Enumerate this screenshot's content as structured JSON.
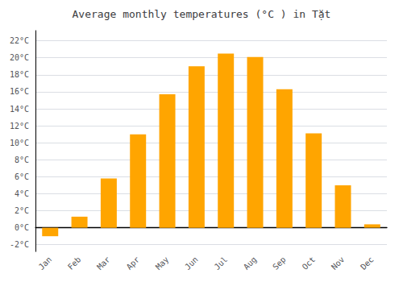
{
  "chart_data": {
    "type": "bar",
    "title": "Average monthly temperatures (°C ) in Tặt",
    "categories": [
      "Jan",
      "Feb",
      "Mar",
      "Apr",
      "May",
      "Jun",
      "Jul",
      "Aug",
      "Sep",
      "Oct",
      "Nov",
      "Dec"
    ],
    "values": [
      -1.0,
      1.3,
      5.8,
      11.0,
      15.7,
      19.0,
      20.5,
      20.1,
      16.3,
      11.1,
      5.0,
      0.4
    ],
    "color": "#FFA500",
    "ylim": [
      -2.8,
      23.2
    ],
    "yticks": [
      {
        "value": -2,
        "label": "-2°C"
      },
      {
        "value": 0,
        "label": "0°C"
      },
      {
        "value": 2,
        "label": "2°C"
      },
      {
        "value": 4,
        "label": "4°C"
      },
      {
        "value": 6,
        "label": "6°C"
      },
      {
        "value": 8,
        "label": "8°C"
      },
      {
        "value": 10,
        "label": "10°C"
      },
      {
        "value": 12,
        "label": "12°C"
      },
      {
        "value": 14,
        "label": "14°C"
      },
      {
        "value": 16,
        "label": "16°C"
      },
      {
        "value": 18,
        "label": "18°C"
      },
      {
        "value": 20,
        "label": "20°C"
      },
      {
        "value": 22,
        "label": "22°C"
      }
    ],
    "grid": true
  }
}
